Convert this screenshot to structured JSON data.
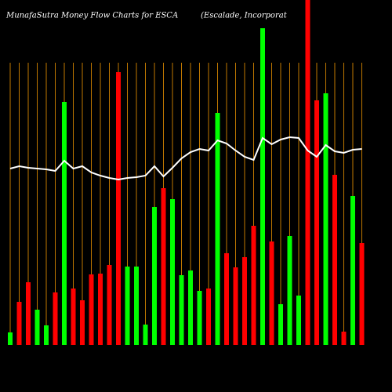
{
  "chart_data": {
    "type": "bar",
    "title": "MunafaSutra  Money Flow  Charts for ESCA",
    "subtitle": "(Escalade,  Incorporat",
    "ylim": [
      0,
      440
    ],
    "values": [
      16,
      55,
      80,
      45,
      25,
      67,
      310,
      72,
      57,
      90,
      91,
      102,
      348,
      100,
      100,
      26,
      176,
      200,
      186,
      89,
      95,
      69,
      72,
      296,
      117,
      99,
      112,
      152,
      404,
      132,
      52,
      139,
      63,
      460,
      312,
      321,
      217,
      17,
      190,
      130
    ],
    "colors": [
      "#00ff00",
      "#ff0000",
      "#ff0000",
      "#00ff00",
      "#00ff00",
      "#ff0000",
      "#00ff00",
      "#ff0000",
      "#ff0000",
      "#ff0000",
      "#ff0000",
      "#ff0000",
      "#ff0000",
      "#00ff00",
      "#00ff00",
      "#00ff00",
      "#00ff00",
      "#ff0000",
      "#00ff00",
      "#00ff00",
      "#00ff00",
      "#00ff00",
      "#ff0000",
      "#00ff00",
      "#ff0000",
      "#ff0000",
      "#ff0000",
      "#ff0000",
      "#00ff00",
      "#ff0000",
      "#00ff00",
      "#00ff00",
      "#00ff00",
      "#ff0000",
      "#ff0000",
      "#00ff00",
      "#ff0000",
      "#ff0000",
      "#00ff00",
      "#ff0000"
    ],
    "line": {
      "color": "#ffffff",
      "values": [
        225,
        228,
        226,
        225,
        224,
        222,
        235,
        225,
        228,
        220,
        216,
        213,
        211,
        213,
        214,
        216,
        228,
        215,
        226,
        238,
        246,
        250,
        248,
        261,
        257,
        248,
        240,
        236,
        264,
        256,
        262,
        265,
        264,
        248,
        240,
        255,
        247,
        245,
        249,
        250
      ]
    },
    "gridline_color": "#c07800"
  }
}
